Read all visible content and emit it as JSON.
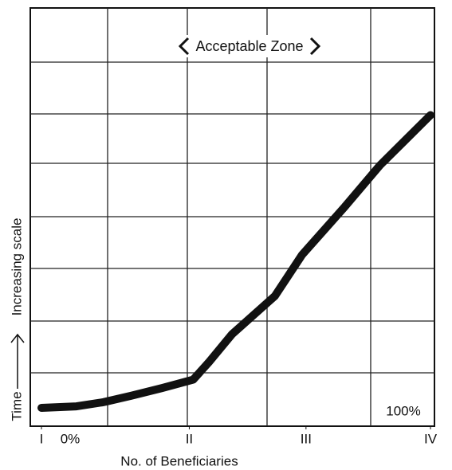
{
  "chart_data": {
    "type": "line",
    "title": "Acceptable Zone",
    "x_label": "No. of Beneficiaries",
    "y_label_parts": [
      "Time",
      "Increasing scale"
    ],
    "annotations": [
      "0%",
      "100%"
    ],
    "x": [
      0,
      9,
      16,
      23,
      31,
      39,
      43,
      49,
      60,
      67,
      78,
      87,
      100
    ],
    "values": [
      0.35,
      0.38,
      0.46,
      0.58,
      0.73,
      0.89,
      1.22,
      1.76,
      2.49,
      3.28,
      4.2,
      4.99,
      5.95
    ],
    "color": "#111111",
    "xlim": [
      0,
      100
    ],
    "ylim": [
      0,
      8
    ],
    "xticks": [
      {
        "value": 0,
        "label": "I"
      },
      {
        "value": 38,
        "label": "II"
      },
      {
        "value": 68,
        "label": "III"
      },
      {
        "value": 100,
        "label": "IV"
      }
    ],
    "grid": true
  }
}
